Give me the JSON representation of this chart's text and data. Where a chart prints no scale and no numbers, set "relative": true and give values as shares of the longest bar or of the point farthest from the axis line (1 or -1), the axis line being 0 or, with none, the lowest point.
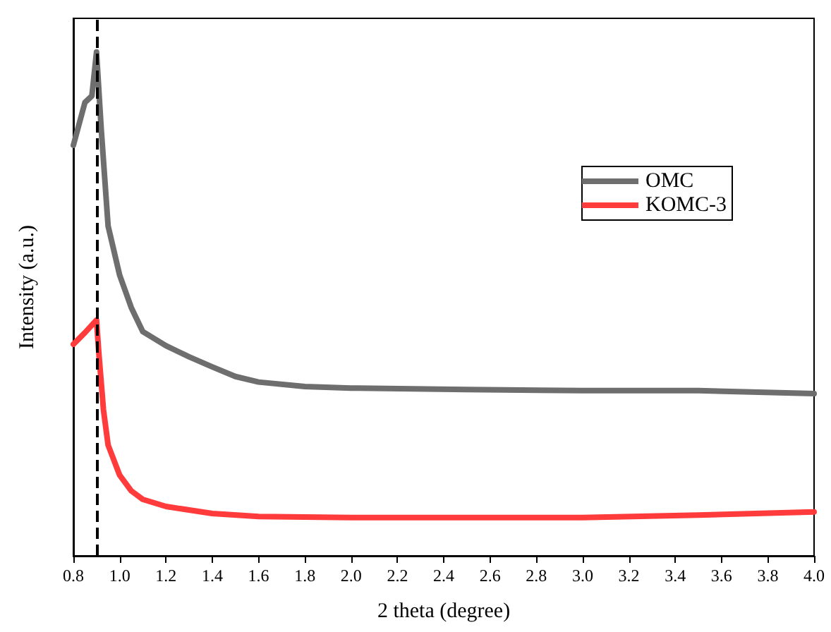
{
  "chart_data": {
    "type": "line",
    "xlabel": "2 theta (degree)",
    "ylabel": "Intensity (a.u.)",
    "relative": true,
    "xlim": [
      0.8,
      4.0
    ],
    "xticks": [
      0.8,
      {
        "value": 1,
        "label": "1.0"
      },
      1.2,
      1.4,
      1.6,
      1.8,
      {
        "value": 2,
        "label": "2.0"
      },
      2.2,
      2.4,
      2.6,
      2.8,
      {
        "value": 3,
        "label": "3.0"
      },
      3.2,
      3.4,
      3.6,
      3.8,
      {
        "value": 4,
        "label": "4.0"
      }
    ],
    "tick_labels": "x",
    "grid": false,
    "legend": "top right",
    "marker": "none",
    "line_style": "solid",
    "series": [
      {
        "name": "OMC",
        "color": "#6e6e6e",
        "x": [
          0.8,
          0.85,
          0.88,
          0.9,
          0.92,
          0.95,
          1.0,
          1.05,
          1.1,
          1.2,
          1.3,
          1.4,
          1.5,
          1.6,
          1.8,
          2.0,
          2.5,
          3.0,
          3.5,
          4.0
        ],
        "values": [
          0.815,
          0.9,
          0.913,
          1.0,
          0.85,
          0.655,
          0.557,
          0.493,
          0.445,
          0.417,
          0.395,
          0.375,
          0.356,
          0.345,
          0.336,
          0.333,
          0.33,
          0.328,
          0.328,
          0.322
        ]
      },
      {
        "name": "KOMC-3",
        "color": "#ff3b3b",
        "x": [
          0.8,
          0.85,
          0.9,
          0.91,
          0.93,
          0.95,
          1.0,
          1.05,
          1.1,
          1.2,
          1.4,
          1.6,
          2.0,
          2.5,
          3.0,
          3.5,
          4.0
        ],
        "values": [
          0.42,
          0.443,
          0.468,
          0.403,
          0.29,
          0.22,
          0.16,
          0.129,
          0.112,
          0.098,
          0.084,
          0.078,
          0.076,
          0.076,
          0.076,
          0.081,
          0.087
        ]
      }
    ],
    "ref_lines": [
      {
        "axis": "x",
        "value": 0.9,
        "color": "#000000",
        "line_style": "dashed"
      }
    ]
  }
}
